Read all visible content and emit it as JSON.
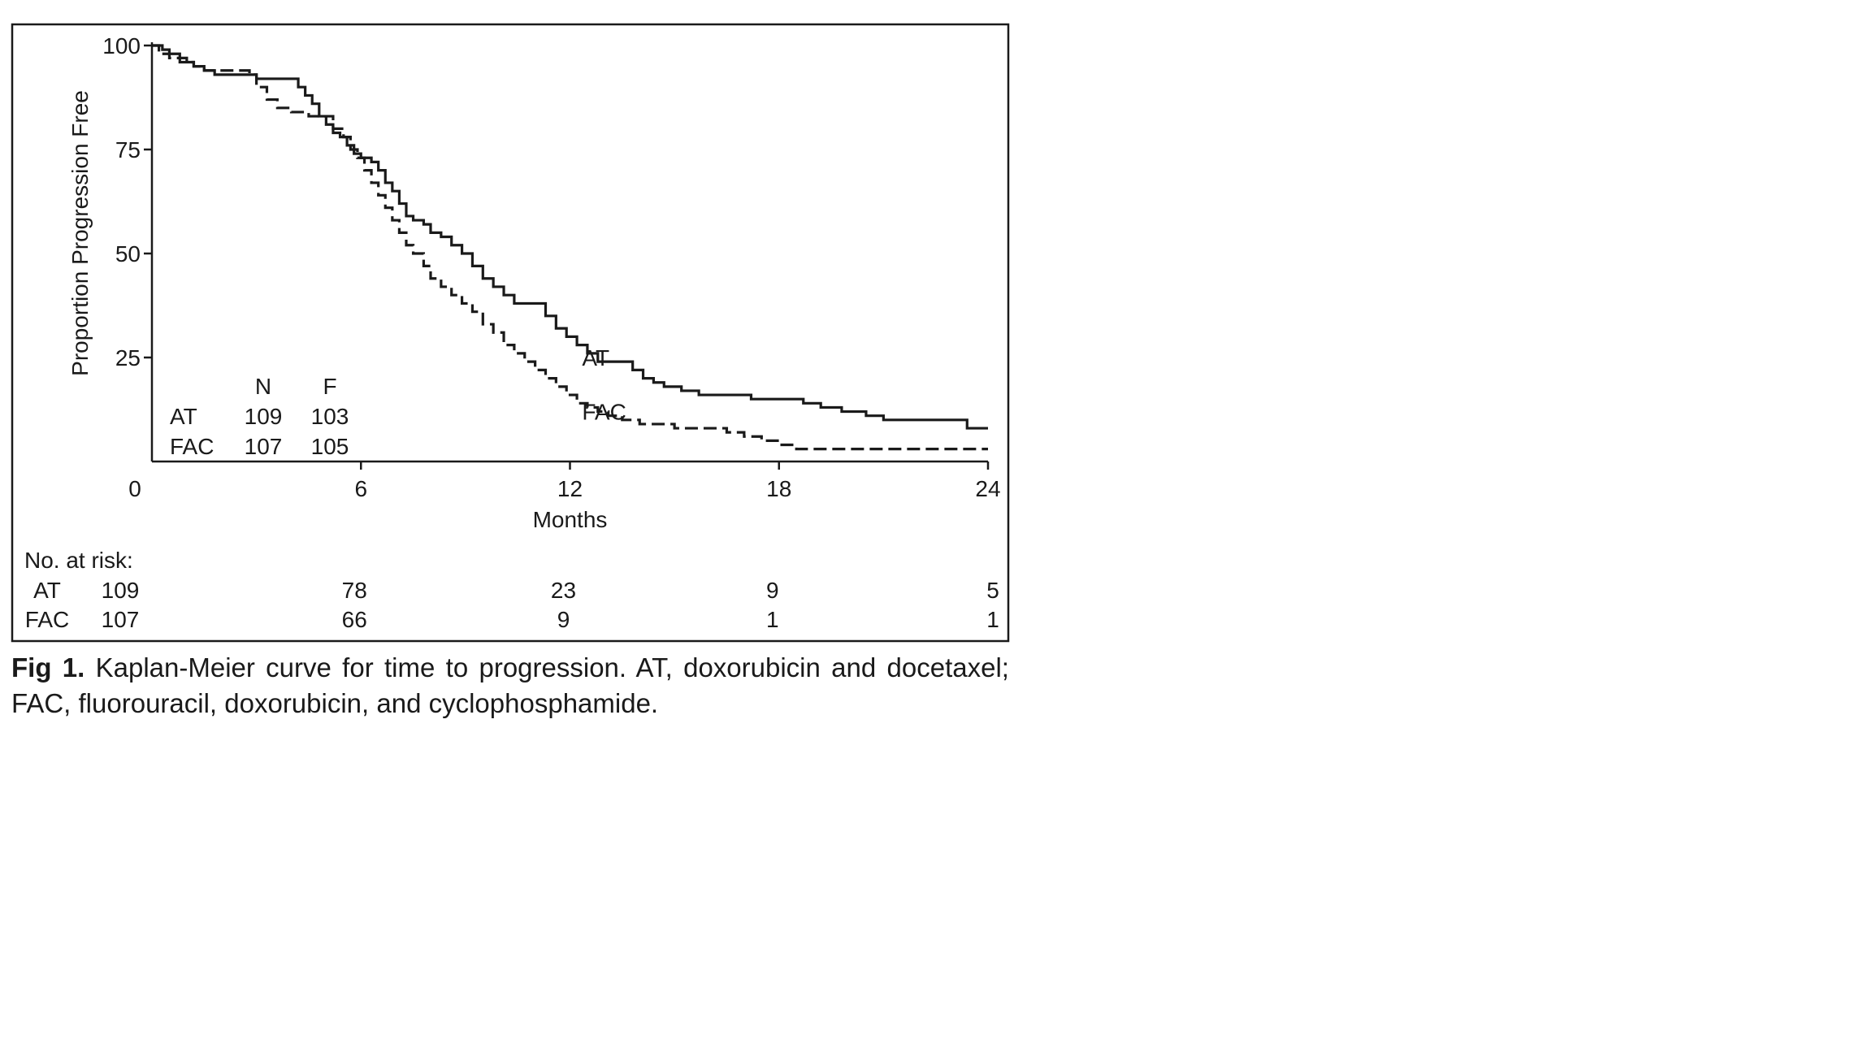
{
  "chart_data": {
    "type": "line",
    "ylabel": "Proportion Progression Free",
    "xlabel": "Months",
    "xlim": [
      0,
      24
    ],
    "ylim": [
      0,
      100
    ],
    "x_ticks": [
      "0",
      "6",
      "12",
      "18",
      "24"
    ],
    "y_ticks": [
      "100",
      "75",
      "50",
      "25"
    ],
    "grid": false,
    "series": [
      {
        "name": "AT",
        "line_style": "solid",
        "points": [
          [
            0,
            100
          ],
          [
            0.3,
            99
          ],
          [
            0.5,
            98
          ],
          [
            0.8,
            97
          ],
          [
            1.0,
            96
          ],
          [
            1.2,
            95
          ],
          [
            1.5,
            94
          ],
          [
            1.8,
            93
          ],
          [
            2.5,
            93
          ],
          [
            3.0,
            92
          ],
          [
            3.5,
            92
          ],
          [
            4.0,
            92
          ],
          [
            4.2,
            90
          ],
          [
            4.4,
            88
          ],
          [
            4.6,
            86
          ],
          [
            4.8,
            83
          ],
          [
            5.0,
            81
          ],
          [
            5.2,
            79
          ],
          [
            5.4,
            78
          ],
          [
            5.6,
            76
          ],
          [
            5.8,
            74
          ],
          [
            6.0,
            73
          ],
          [
            6.3,
            72
          ],
          [
            6.5,
            70
          ],
          [
            6.7,
            67
          ],
          [
            6.9,
            65
          ],
          [
            7.1,
            62
          ],
          [
            7.3,
            59
          ],
          [
            7.5,
            58
          ],
          [
            7.8,
            57
          ],
          [
            8.0,
            55
          ],
          [
            8.3,
            54
          ],
          [
            8.6,
            52
          ],
          [
            8.9,
            50
          ],
          [
            9.2,
            47
          ],
          [
            9.5,
            44
          ],
          [
            9.8,
            42
          ],
          [
            10.1,
            40
          ],
          [
            10.4,
            38
          ],
          [
            11.0,
            38
          ],
          [
            11.3,
            35
          ],
          [
            11.6,
            32
          ],
          [
            11.9,
            30
          ],
          [
            12.2,
            28
          ],
          [
            12.5,
            26
          ],
          [
            12.8,
            24
          ],
          [
            13.6,
            24
          ],
          [
            13.8,
            22
          ],
          [
            14.1,
            20
          ],
          [
            14.4,
            19
          ],
          [
            14.7,
            18
          ],
          [
            15.2,
            17
          ],
          [
            15.7,
            16
          ],
          [
            16.5,
            16
          ],
          [
            17.2,
            15
          ],
          [
            18.0,
            15
          ],
          [
            18.7,
            14
          ],
          [
            19.2,
            13
          ],
          [
            19.8,
            12
          ],
          [
            20.5,
            11
          ],
          [
            21.0,
            10
          ],
          [
            23.2,
            10
          ],
          [
            23.4,
            8
          ],
          [
            24.0,
            8
          ]
        ]
      },
      {
        "name": "FAC",
        "line_style": "dashed",
        "points": [
          [
            0,
            100
          ],
          [
            0.2,
            98
          ],
          [
            0.5,
            97
          ],
          [
            0.8,
            96
          ],
          [
            1.2,
            95
          ],
          [
            1.5,
            94
          ],
          [
            2.5,
            94
          ],
          [
            2.8,
            93
          ],
          [
            3.0,
            90
          ],
          [
            3.3,
            87
          ],
          [
            3.6,
            85
          ],
          [
            4.0,
            84
          ],
          [
            4.5,
            83
          ],
          [
            5.0,
            83
          ],
          [
            5.2,
            80
          ],
          [
            5.5,
            78
          ],
          [
            5.7,
            75
          ],
          [
            5.9,
            73
          ],
          [
            6.1,
            70
          ],
          [
            6.3,
            67
          ],
          [
            6.5,
            64
          ],
          [
            6.7,
            61
          ],
          [
            6.9,
            58
          ],
          [
            7.1,
            55
          ],
          [
            7.3,
            52
          ],
          [
            7.5,
            50
          ],
          [
            7.8,
            47
          ],
          [
            8.0,
            44
          ],
          [
            8.3,
            42
          ],
          [
            8.6,
            40
          ],
          [
            8.9,
            38
          ],
          [
            9.2,
            36
          ],
          [
            9.5,
            33
          ],
          [
            9.8,
            31
          ],
          [
            10.1,
            28
          ],
          [
            10.4,
            26
          ],
          [
            10.7,
            24
          ],
          [
            11.0,
            22
          ],
          [
            11.3,
            20
          ],
          [
            11.6,
            18
          ],
          [
            11.9,
            16
          ],
          [
            12.2,
            14
          ],
          [
            12.5,
            13
          ],
          [
            12.8,
            12
          ],
          [
            13.1,
            11
          ],
          [
            13.5,
            10
          ],
          [
            14.0,
            9
          ],
          [
            14.5,
            9
          ],
          [
            15.0,
            8
          ],
          [
            16.0,
            8
          ],
          [
            16.5,
            7
          ],
          [
            17.0,
            6
          ],
          [
            17.5,
            5
          ],
          [
            18.0,
            4
          ],
          [
            18.5,
            3
          ],
          [
            19.0,
            3
          ],
          [
            24.0,
            3
          ]
        ]
      }
    ],
    "annotations": {
      "series_labels": [
        {
          "text": "AT",
          "x": 12.3,
          "y": 25
        },
        {
          "text": "FAC",
          "x": 12.3,
          "y": 12
        }
      ]
    },
    "inset_table": {
      "headers": [
        "",
        "N",
        "F"
      ],
      "rows": [
        [
          "AT",
          "109",
          "103"
        ],
        [
          "FAC",
          "107",
          "105"
        ]
      ]
    },
    "at_risk": {
      "title": "No. at risk:",
      "times": [
        0,
        6,
        12,
        18,
        24
      ],
      "rows": [
        {
          "label": "AT",
          "values": [
            "109",
            "78",
            "23",
            "9",
            "5"
          ]
        },
        {
          "label": "FAC",
          "values": [
            "107",
            "66",
            "9",
            "1",
            "1"
          ]
        }
      ]
    }
  },
  "caption": {
    "label": "Fig 1.",
    "text": " Kaplan-Meier curve for time to progression. AT, doxorubicin and docetaxel; FAC, fluorouracil, doxorubicin, and cyclophosphamide."
  }
}
